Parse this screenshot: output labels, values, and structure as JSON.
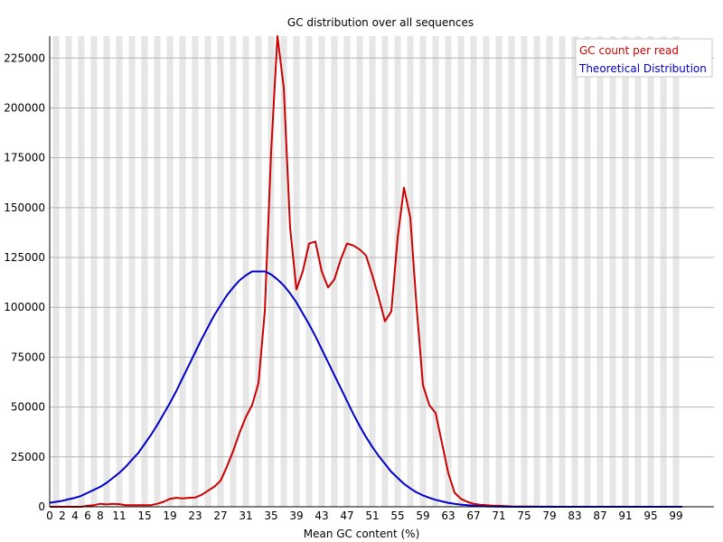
{
  "chart_data": {
    "type": "line",
    "title": "GC distribution over all sequences",
    "xlabel": "Mean GC content (%)",
    "ylabel": "",
    "xlim": [
      0,
      100
    ],
    "ylim": [
      0,
      236000
    ],
    "yticks": [
      0,
      25000,
      50000,
      75000,
      100000,
      125000,
      150000,
      175000,
      200000,
      225000
    ],
    "xticks": [
      0,
      2,
      4,
      6,
      8,
      11,
      15,
      19,
      23,
      27,
      31,
      35,
      39,
      43,
      47,
      51,
      55,
      59,
      63,
      67,
      71,
      75,
      79,
      83,
      87,
      91,
      95,
      99
    ],
    "grid": true,
    "legend_position": "top-right",
    "colors": {
      "gc_count": "#cc0000",
      "theoretical": "#0000cc",
      "band": "#e6e6e6",
      "gridline": "#b4b4b4"
    },
    "x": [
      0,
      1,
      2,
      3,
      4,
      5,
      6,
      7,
      8,
      9,
      10,
      11,
      12,
      13,
      14,
      15,
      16,
      17,
      18,
      19,
      20,
      21,
      22,
      23,
      24,
      25,
      26,
      27,
      28,
      29,
      30,
      31,
      32,
      33,
      34,
      35,
      36,
      37,
      38,
      39,
      40,
      41,
      42,
      43,
      44,
      45,
      46,
      47,
      48,
      49,
      50,
      51,
      52,
      53,
      54,
      55,
      56,
      57,
      58,
      59,
      60,
      61,
      62,
      63,
      64,
      65,
      66,
      67,
      68,
      69,
      70,
      71,
      72,
      73,
      74,
      75,
      76,
      77,
      78,
      79,
      80,
      81,
      82,
      83,
      84,
      85,
      86,
      87,
      88,
      89,
      90,
      91,
      92,
      93,
      94,
      95,
      96,
      97,
      98,
      99,
      100
    ],
    "series": [
      {
        "name": "GC count per read",
        "color": "#cc0000",
        "values": [
          0,
          0,
          0,
          0,
          0,
          0,
          500,
          800,
          1500,
          1200,
          1500,
          1300,
          800,
          800,
          800,
          800,
          800,
          1500,
          2500,
          4000,
          4500,
          4200,
          4500,
          4600,
          6000,
          8000,
          10000,
          13000,
          20000,
          28000,
          37000,
          45000,
          51000,
          62000,
          98000,
          178000,
          236000,
          210000,
          140000,
          109000,
          118000,
          132000,
          133000,
          118000,
          110000,
          114000,
          124000,
          132000,
          131000,
          129000,
          126000,
          116000,
          105000,
          93000,
          98000,
          135000,
          160000,
          145000,
          100000,
          61000,
          51000,
          47000,
          32000,
          17000,
          7000,
          4000,
          2500,
          1500,
          1000,
          800,
          600,
          500,
          300,
          200,
          150,
          100,
          80,
          60,
          40,
          30,
          20,
          10,
          5,
          0,
          0,
          0,
          0,
          0,
          0,
          0,
          0,
          0,
          0,
          0,
          0,
          0,
          0,
          0,
          0,
          0,
          0
        ]
      },
      {
        "name": "Theoretical Distribution",
        "color": "#0000cc",
        "values": [
          2000,
          2500,
          3000,
          3800,
          4500,
          5500,
          7000,
          8500,
          10000,
          12000,
          14500,
          17000,
          20000,
          23500,
          27000,
          31500,
          36000,
          41000,
          46500,
          52000,
          58000,
          64500,
          71000,
          77500,
          84000,
          90000,
          96000,
          101000,
          106000,
          110000,
          113500,
          116000,
          118000,
          118000,
          118000,
          116500,
          114000,
          111000,
          107000,
          102500,
          97000,
          91500,
          85500,
          79000,
          72500,
          66000,
          59500,
          53000,
          46500,
          40500,
          35000,
          30000,
          25500,
          21500,
          17500,
          14500,
          11500,
          9200,
          7200,
          5700,
          4500,
          3500,
          2700,
          2000,
          1500,
          1100,
          800,
          550,
          350,
          200,
          100,
          60,
          30,
          15,
          5,
          0,
          0,
          0,
          0,
          0,
          0,
          0,
          0,
          0,
          0,
          0,
          0,
          0,
          0,
          0,
          0,
          0,
          0,
          0,
          0,
          0,
          0,
          0,
          0,
          0,
          0
        ]
      }
    ]
  }
}
